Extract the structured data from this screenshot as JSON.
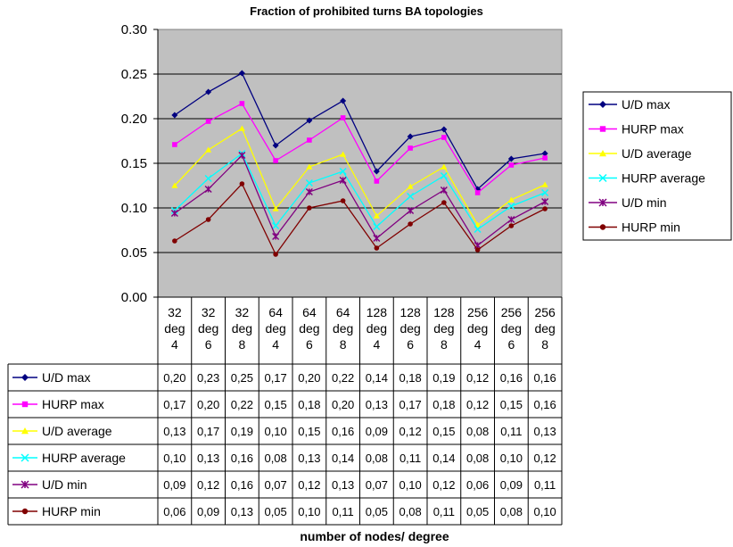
{
  "chart_data": {
    "type": "line",
    "title": "Fraction of prohibited turns BA topologies",
    "xlabel": "number of nodes/ degree",
    "ylabel": "",
    "ylim": [
      0,
      0.3
    ],
    "y_ticks": [
      "0.00",
      "0.05",
      "0.10",
      "0.15",
      "0.20",
      "0.25",
      "0.30"
    ],
    "grid": true,
    "legend_position": "right",
    "plot_background": "#c0c0c0",
    "categories": [
      [
        "32",
        "deg",
        "4"
      ],
      [
        "32",
        "deg",
        "6"
      ],
      [
        "32",
        "deg",
        "8"
      ],
      [
        "64",
        "deg",
        "4"
      ],
      [
        "64",
        "deg",
        "6"
      ],
      [
        "64",
        "deg",
        "8"
      ],
      [
        "128",
        "deg",
        "4"
      ],
      [
        "128",
        "deg",
        "6"
      ],
      [
        "128",
        "deg",
        "8"
      ],
      [
        "256",
        "deg",
        "4"
      ],
      [
        "256",
        "deg",
        "6"
      ],
      [
        "256",
        "deg",
        "8"
      ]
    ],
    "series": [
      {
        "name": "U/D   max",
        "color": "#000080",
        "marker": "diamond",
        "values": [
          0.204,
          0.23,
          0.251,
          0.17,
          0.198,
          0.22,
          0.141,
          0.18,
          0.188,
          0.121,
          0.155,
          0.161
        ],
        "table_values": [
          "0,20",
          "0,23",
          "0,25",
          "0,17",
          "0,20",
          "0,22",
          "0,14",
          "0,18",
          "0,19",
          "0,12",
          "0,16",
          "0,16"
        ]
      },
      {
        "name": "HURP max",
        "color": "#ff00ff",
        "marker": "square",
        "values": [
          0.171,
          0.197,
          0.217,
          0.153,
          0.176,
          0.201,
          0.13,
          0.167,
          0.179,
          0.117,
          0.148,
          0.156
        ],
        "table_values": [
          "0,17",
          "0,20",
          "0,22",
          "0,15",
          "0,18",
          "0,20",
          "0,13",
          "0,17",
          "0,18",
          "0,12",
          "0,15",
          "0,16"
        ]
      },
      {
        "name": "U/D average",
        "color": "#ffff00",
        "marker": "triangle",
        "values": [
          0.125,
          0.165,
          0.189,
          0.099,
          0.146,
          0.16,
          0.091,
          0.124,
          0.146,
          0.081,
          0.109,
          0.126
        ],
        "table_values": [
          "0,13",
          "0,17",
          "0,19",
          "0,10",
          "0,15",
          "0,16",
          "0,09",
          "0,12",
          "0,15",
          "0,08",
          "0,11",
          "0,13"
        ]
      },
      {
        "name": "HURP average",
        "color": "#00ffff",
        "marker": "x",
        "values": [
          0.097,
          0.133,
          0.161,
          0.08,
          0.128,
          0.141,
          0.079,
          0.113,
          0.136,
          0.076,
          0.102,
          0.117
        ],
        "table_values": [
          "0,10",
          "0,13",
          "0,16",
          "0,08",
          "0,13",
          "0,14",
          "0,08",
          "0,11",
          "0,14",
          "0,08",
          "0,10",
          "0,12"
        ]
      },
      {
        "name": "U/D         min",
        "color": "#800080",
        "marker": "star",
        "values": [
          0.094,
          0.121,
          0.159,
          0.068,
          0.118,
          0.131,
          0.066,
          0.097,
          0.12,
          0.058,
          0.087,
          0.107
        ],
        "table_values": [
          "0,09",
          "0,12",
          "0,16",
          "0,07",
          "0,12",
          "0,13",
          "0,07",
          "0,10",
          "0,12",
          "0,06",
          "0,09",
          "0,11"
        ]
      },
      {
        "name": "HURP min",
        "color": "#800000",
        "marker": "circle",
        "values": [
          0.063,
          0.087,
          0.127,
          0.048,
          0.1,
          0.108,
          0.055,
          0.082,
          0.106,
          0.053,
          0.08,
          0.099
        ],
        "table_values": [
          "0,06",
          "0,09",
          "0,13",
          "0,05",
          "0,10",
          "0,11",
          "0,05",
          "0,08",
          "0,11",
          "0,05",
          "0,08",
          "0,10"
        ]
      }
    ]
  }
}
